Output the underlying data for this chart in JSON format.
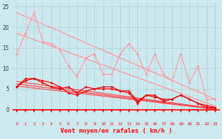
{
  "title": "",
  "xlabel": "Vent moyen/en rafales ( km/h )",
  "bg_color": "#cce9f0",
  "grid_color": "#aacccc",
  "xlim": [
    -0.5,
    23.5
  ],
  "ylim": [
    0,
    26
  ],
  "yticks": [
    0,
    5,
    10,
    15,
    20,
    25
  ],
  "xticks": [
    0,
    1,
    2,
    3,
    4,
    5,
    6,
    7,
    8,
    9,
    10,
    11,
    12,
    13,
    14,
    15,
    16,
    17,
    18,
    19,
    20,
    21,
    22,
    23
  ],
  "line_upper_diag1": {
    "x": [
      0,
      23
    ],
    "y": [
      23.5,
      2.5
    ],
    "color": "#ff9999",
    "lw": 1.0
  },
  "line_upper_diag2": {
    "x": [
      0,
      23
    ],
    "y": [
      18.5,
      0.8
    ],
    "color": "#ff9999",
    "lw": 1.0
  },
  "line_lower_diag1": {
    "x": [
      0,
      23
    ],
    "y": [
      6.8,
      0.2
    ],
    "color": "#ff4444",
    "lw": 0.9
  },
  "line_lower_diag2": {
    "x": [
      0,
      23
    ],
    "y": [
      6.2,
      0.1
    ],
    "color": "#ff4444",
    "lw": 0.9
  },
  "line_lower_diag3": {
    "x": [
      0,
      23
    ],
    "y": [
      5.7,
      0.05
    ],
    "color": "#ff4444",
    "lw": 0.8
  },
  "series_pink": {
    "x": [
      0,
      1,
      2,
      3,
      4,
      5,
      6,
      7,
      8,
      9,
      10,
      11,
      12,
      13,
      14,
      15,
      16,
      17,
      18,
      19,
      20,
      21,
      22,
      23
    ],
    "y": [
      13.5,
      18.5,
      23.5,
      16.5,
      16.0,
      14.5,
      10.5,
      8.0,
      12.5,
      13.5,
      8.5,
      8.5,
      13.5,
      16.0,
      13.5,
      8.5,
      13.5,
      8.5,
      7.0,
      13.5,
      6.5,
      10.5,
      2.5,
      2.5
    ],
    "color": "#ff9999",
    "lw": 0.9,
    "marker": "D",
    "ms": 2.0
  },
  "series_red1": {
    "x": [
      0,
      1,
      2,
      3,
      4,
      5,
      6,
      7,
      8,
      9,
      10,
      11,
      12,
      13,
      14,
      15,
      16,
      17,
      18,
      19,
      20,
      21,
      22,
      23
    ],
    "y": [
      5.5,
      7.5,
      7.5,
      7.0,
      6.5,
      5.5,
      4.0,
      3.5,
      4.5,
      5.0,
      5.0,
      5.0,
      4.5,
      4.0,
      1.5,
      3.5,
      3.5,
      2.0,
      2.5,
      3.5,
      2.5,
      1.5,
      1.0,
      0.5
    ],
    "color": "#ff0000",
    "lw": 0.9,
    "marker": "D",
    "ms": 2.0
  },
  "series_red2": {
    "x": [
      0,
      1,
      2,
      3,
      4,
      5,
      6,
      7,
      8,
      9,
      10,
      11,
      12,
      13,
      14,
      15,
      16,
      17,
      18,
      19,
      20,
      21,
      22,
      23
    ],
    "y": [
      5.5,
      7.0,
      7.5,
      6.5,
      5.5,
      5.0,
      5.5,
      4.0,
      5.5,
      5.0,
      5.5,
      5.5,
      4.5,
      4.5,
      2.0,
      3.5,
      3.0,
      2.5,
      2.5,
      3.5,
      2.5,
      1.5,
      0.5,
      0.5
    ],
    "color": "#dd0000",
    "lw": 0.9,
    "marker": "D",
    "ms": 1.8
  },
  "arrow_color": "#ff0000",
  "axis_line_color": "#ff0000",
  "tick_label_color": "#ff0000",
  "ytick_label_color": "#333333",
  "xlabel_color": "#ff0000",
  "xlabel_fontsize": 6.5,
  "xtick_fontsize": 4.5,
  "ytick_fontsize": 5.5
}
